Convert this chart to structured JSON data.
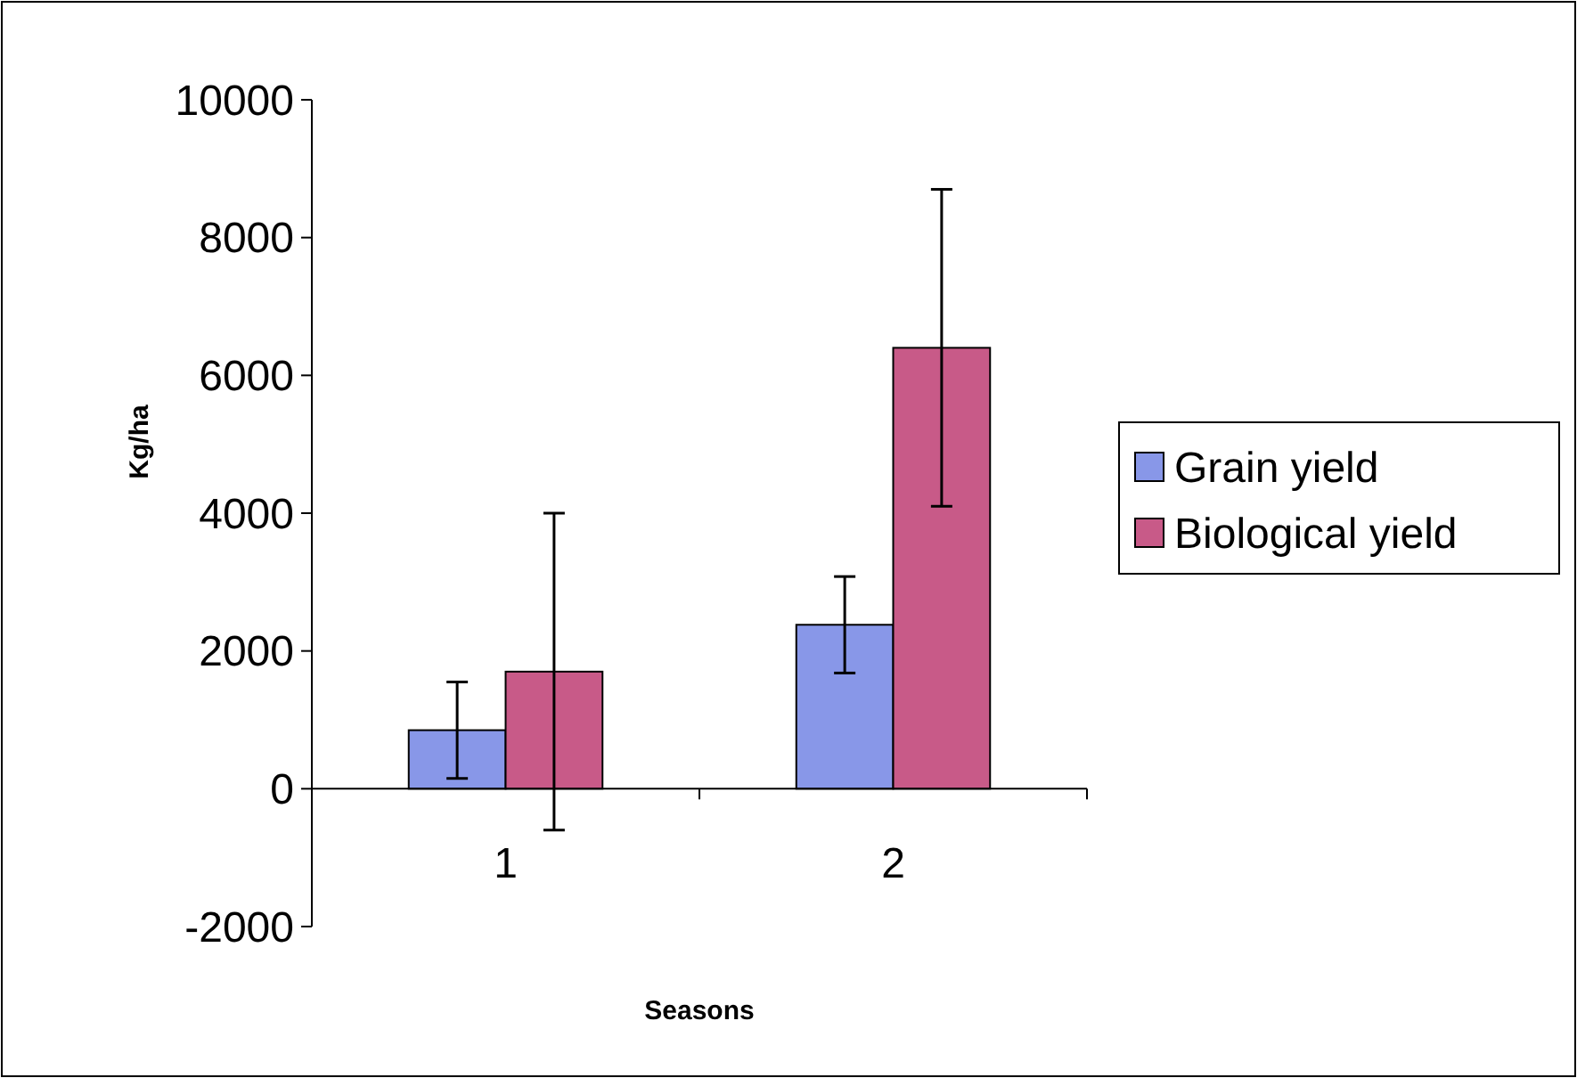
{
  "chart_data": {
    "type": "bar",
    "xlabel": "Seasons",
    "ylabel": "Kg/ha",
    "categories": [
      "1",
      "2"
    ],
    "series": [
      {
        "name": "Grain yield",
        "color": "#8897e8",
        "values": [
          850,
          2380
        ],
        "errors": [
          700,
          700
        ]
      },
      {
        "name": "Biological yield",
        "color": "#c85a88",
        "values": [
          1700,
          6400
        ],
        "errors": [
          2300,
          2300
        ]
      }
    ],
    "ylim": [
      -2000,
      10000
    ],
    "yticks": [
      -2000,
      0,
      2000,
      4000,
      6000,
      8000,
      10000
    ],
    "grid": false,
    "legend": "right"
  }
}
